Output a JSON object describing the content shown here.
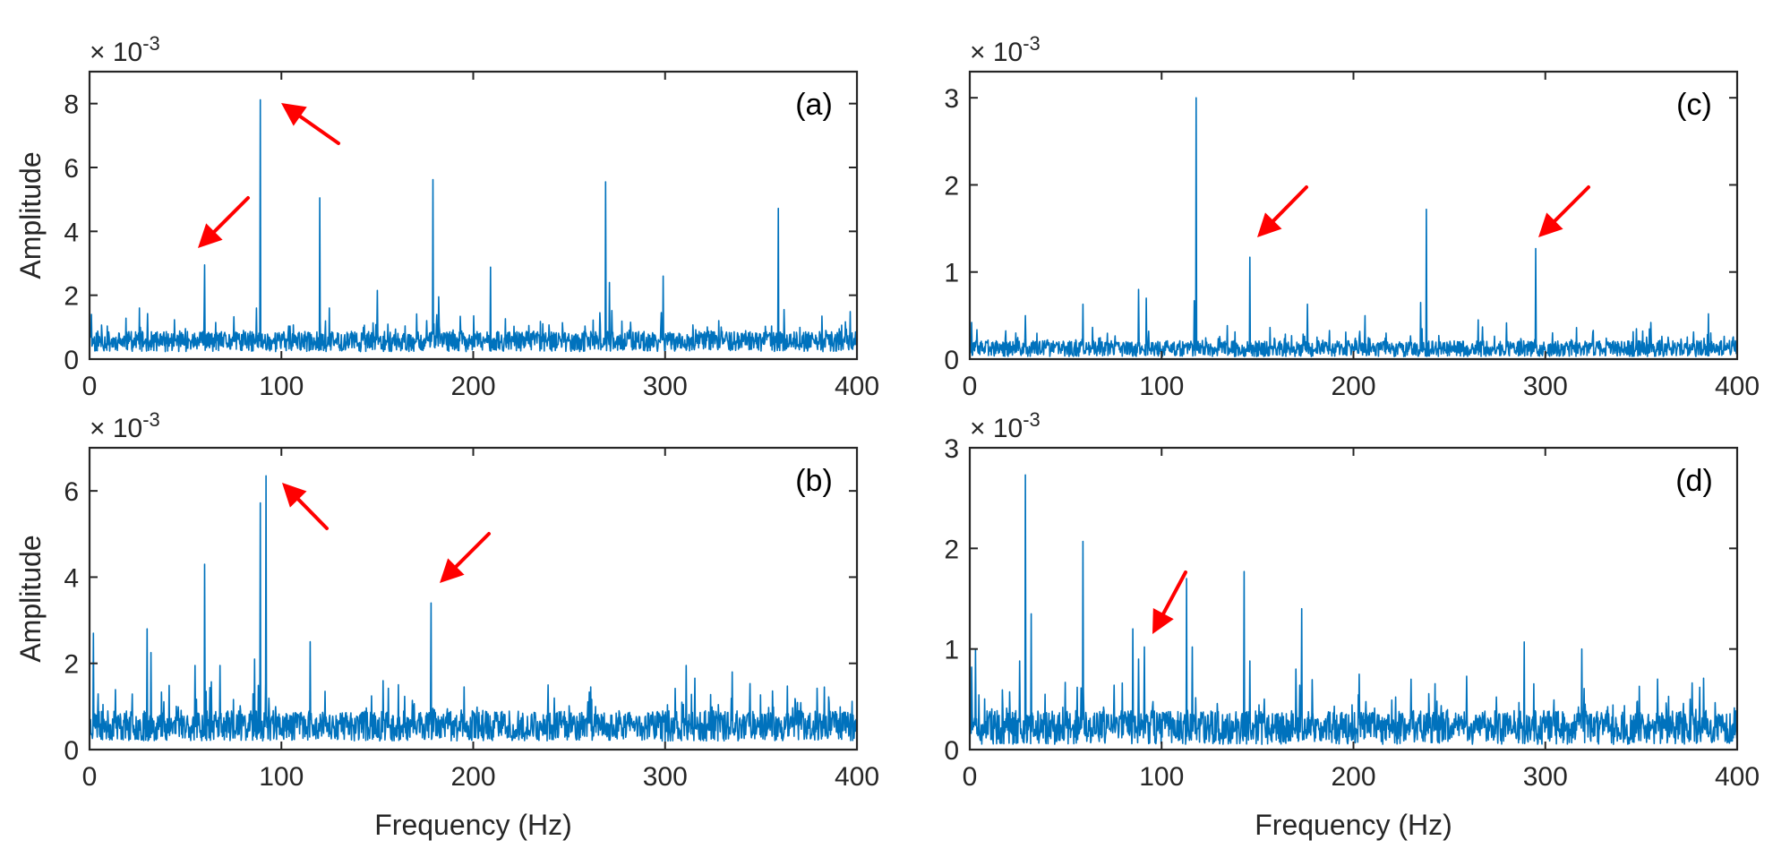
{
  "chart_data": [
    {
      "type": "line",
      "panel": "(a)",
      "title": "",
      "xlabel": "",
      "ylabel": "Amplitude",
      "y_multiplier": "× 10^-3",
      "xlim": [
        0,
        400
      ],
      "ylim": [
        0,
        9
      ],
      "xticks": [
        0,
        100,
        200,
        300,
        400
      ],
      "yticks": [
        0,
        2,
        4,
        6,
        8
      ],
      "grid": false,
      "noise": {
        "baseline": 0.55,
        "spread": 0.45,
        "seed": 11
      },
      "peaks": [
        {
          "x": 1,
          "y": 1.4
        },
        {
          "x": 26,
          "y": 1.6
        },
        {
          "x": 60,
          "y": 2.95
        },
        {
          "x": 87,
          "y": 1.6
        },
        {
          "x": 89,
          "y": 8.12
        },
        {
          "x": 120,
          "y": 5.05
        },
        {
          "x": 125,
          "y": 1.6
        },
        {
          "x": 150,
          "y": 2.15
        },
        {
          "x": 179,
          "y": 5.62
        },
        {
          "x": 182,
          "y": 1.95
        },
        {
          "x": 209,
          "y": 2.88
        },
        {
          "x": 269,
          "y": 5.55
        },
        {
          "x": 271,
          "y": 2.4
        },
        {
          "x": 299,
          "y": 2.6
        },
        {
          "x": 359,
          "y": 4.72
        },
        {
          "x": 362,
          "y": 1.55
        }
      ],
      "annotations": [
        {
          "type": "arrow",
          "points_to_x": 89,
          "description": "arrow pointing to peak near 89 Hz"
        },
        {
          "type": "arrow",
          "points_to_x": 60,
          "description": "arrow pointing to peak near 60 Hz"
        }
      ]
    },
    {
      "type": "line",
      "panel": "(b)",
      "title": "",
      "xlabel": "Frequency (Hz)",
      "ylabel": "Amplitude",
      "y_multiplier": "× 10^-3",
      "xlim": [
        0,
        400
      ],
      "ylim": [
        0,
        7
      ],
      "xticks": [
        0,
        100,
        200,
        300,
        400
      ],
      "yticks": [
        0,
        2,
        4,
        6
      ],
      "grid": false,
      "noise": {
        "baseline": 0.55,
        "spread": 0.5,
        "seed": 23
      },
      "peaks": [
        {
          "x": 2,
          "y": 2.7
        },
        {
          "x": 30,
          "y": 2.8
        },
        {
          "x": 32,
          "y": 2.25
        },
        {
          "x": 55,
          "y": 1.95
        },
        {
          "x": 60,
          "y": 4.3
        },
        {
          "x": 68,
          "y": 1.95
        },
        {
          "x": 86,
          "y": 2.1
        },
        {
          "x": 89,
          "y": 5.72
        },
        {
          "x": 92,
          "y": 6.35
        },
        {
          "x": 115,
          "y": 2.5
        },
        {
          "x": 178,
          "y": 3.4
        },
        {
          "x": 239,
          "y": 1.5
        },
        {
          "x": 311,
          "y": 1.95
        },
        {
          "x": 335,
          "y": 1.8
        },
        {
          "x": 383,
          "y": 1.45
        }
      ],
      "annotations": [
        {
          "type": "arrow",
          "points_to_x": 92,
          "description": "arrow pointing to peak near 92 Hz"
        },
        {
          "type": "arrow",
          "points_to_x": 178,
          "description": "arrow pointing to peak near 178 Hz"
        }
      ]
    },
    {
      "type": "line",
      "panel": "(c)",
      "title": "",
      "xlabel": "",
      "ylabel": "",
      "y_multiplier": "× 10^-3",
      "xlim": [
        0,
        400
      ],
      "ylim": [
        0,
        3.3
      ],
      "xticks": [
        0,
        100,
        200,
        300,
        400
      ],
      "yticks": [
        0,
        1,
        2,
        3
      ],
      "grid": false,
      "noise": {
        "baseline": 0.12,
        "spread": 0.13,
        "seed": 37
      },
      "peaks": [
        {
          "x": 1,
          "y": 0.42
        },
        {
          "x": 29,
          "y": 0.5
        },
        {
          "x": 59,
          "y": 0.63
        },
        {
          "x": 88,
          "y": 0.8
        },
        {
          "x": 92,
          "y": 0.7
        },
        {
          "x": 117,
          "y": 0.67
        },
        {
          "x": 118,
          "y": 3.0
        },
        {
          "x": 146,
          "y": 1.17
        },
        {
          "x": 176,
          "y": 0.63
        },
        {
          "x": 206,
          "y": 0.5
        },
        {
          "x": 235,
          "y": 0.65
        },
        {
          "x": 238,
          "y": 1.72
        },
        {
          "x": 265,
          "y": 0.45
        },
        {
          "x": 295,
          "y": 1.27
        },
        {
          "x": 325,
          "y": 0.33
        },
        {
          "x": 355,
          "y": 0.42
        },
        {
          "x": 385,
          "y": 0.52
        }
      ],
      "annotations": [
        {
          "type": "arrow",
          "points_to_x": 146,
          "description": "arrow pointing to peak near 146 Hz"
        },
        {
          "type": "arrow",
          "points_to_x": 295,
          "description": "arrow pointing to peak near 295 Hz"
        }
      ]
    },
    {
      "type": "line",
      "panel": "(d)",
      "title": "",
      "xlabel": "Frequency (Hz)",
      "ylabel": "",
      "y_multiplier": "× 10^-3",
      "xlim": [
        0,
        400
      ],
      "ylim": [
        0,
        3
      ],
      "xticks": [
        0,
        100,
        200,
        300,
        400
      ],
      "yticks": [
        0,
        1,
        2,
        3
      ],
      "grid": false,
      "noise": {
        "baseline": 0.22,
        "spread": 0.24,
        "seed": 51
      },
      "peaks": [
        {
          "x": 1,
          "y": 0.82
        },
        {
          "x": 3,
          "y": 1.0
        },
        {
          "x": 26,
          "y": 0.88
        },
        {
          "x": 29,
          "y": 2.73
        },
        {
          "x": 32,
          "y": 1.35
        },
        {
          "x": 56,
          "y": 0.62
        },
        {
          "x": 59,
          "y": 2.07
        },
        {
          "x": 85,
          "y": 1.2
        },
        {
          "x": 88,
          "y": 0.9
        },
        {
          "x": 91,
          "y": 1.02
        },
        {
          "x": 113,
          "y": 1.7
        },
        {
          "x": 116,
          "y": 1.02
        },
        {
          "x": 143,
          "y": 1.77
        },
        {
          "x": 146,
          "y": 0.88
        },
        {
          "x": 170,
          "y": 0.8
        },
        {
          "x": 173,
          "y": 1.4
        },
        {
          "x": 203,
          "y": 0.75
        },
        {
          "x": 230,
          "y": 0.7
        },
        {
          "x": 259,
          "y": 0.73
        },
        {
          "x": 289,
          "y": 1.07
        },
        {
          "x": 319,
          "y": 1.0
        },
        {
          "x": 348,
          "y": 0.48
        }
      ],
      "annotations": [
        {
          "type": "arrow",
          "points_to_x": 91,
          "description": "arrow pointing to peak near 91 Hz"
        }
      ]
    }
  ],
  "figure": {
    "series_color": "#0072BD",
    "arrow_color": "#FF0000",
    "axis_color": "#262626",
    "exponent_base": "× 10",
    "exponent_power": "-3"
  }
}
